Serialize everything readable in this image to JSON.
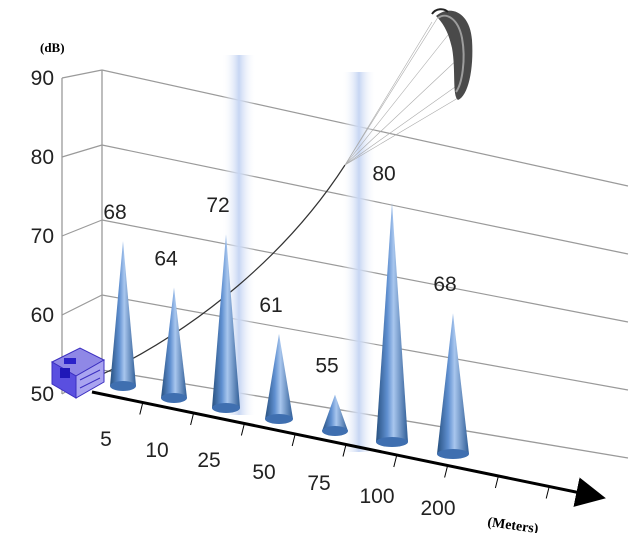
{
  "chart_data": {
    "type": "bar",
    "style": "3d-cone",
    "categories": [
      "5",
      "10",
      "25",
      "50",
      "75",
      "100",
      "200"
    ],
    "values": [
      68,
      64,
      72,
      61,
      55,
      80,
      68
    ],
    "data_labels": [
      "68",
      "64",
      "72",
      "61",
      "55",
      "80",
      "68"
    ],
    "y_unit": "(dB)",
    "x_unit": "(Meters)",
    "y_ticks": [
      "50",
      "60",
      "70",
      "80",
      "90"
    ],
    "ylim": [
      50,
      90
    ],
    "grid": true,
    "legend": "none",
    "colors": {
      "cone": "#4a7cc0",
      "cone_light": "#a8c6ee",
      "cone_dark": "#27507f",
      "grid": "#9a9a9a",
      "beam": "#c7d6f3",
      "axis": "#000000"
    }
  }
}
